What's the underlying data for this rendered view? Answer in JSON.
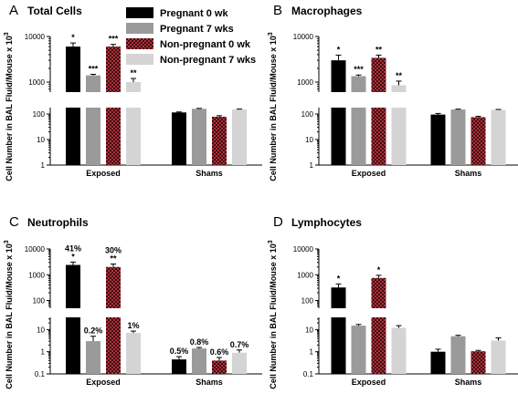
{
  "figure": {
    "legend": [
      {
        "name": "Pregnant 0 wk",
        "color": "#000000",
        "pattern": "solid"
      },
      {
        "name": "Pregnant 7 wks",
        "color": "#9a9a9a",
        "pattern": "solid"
      },
      {
        "name": "Non-pregnant 0 wk",
        "color": "#b0303a",
        "pattern": "checker"
      },
      {
        "name": "Non-pregnant 7 wks",
        "color": "#d4d4d4",
        "pattern": "solid"
      }
    ]
  },
  "chart_data": [
    {
      "type": "bar",
      "letter": "A",
      "title": "Total Cells",
      "ylabel": "Cell Number in BAL Fluid/Mouse x 10",
      "ylabel_sup": "3",
      "categories": [
        "Exposed",
        "Shams"
      ],
      "yscale": "log-broken",
      "upper_ticks": [
        "1000",
        "10000"
      ],
      "lower_ticks": [
        "1",
        "10",
        "100"
      ],
      "series": [
        {
          "name": "Pregnant 0 wk",
          "values": [
            6000,
            115
          ],
          "errors": [
            1200,
            5
          ]
        },
        {
          "name": "Pregnant 7 wks",
          "values": [
            1400,
            160
          ],
          "errors": [
            80,
            6
          ]
        },
        {
          "name": "Non-pregnant 0 wk",
          "values": [
            6000,
            78
          ],
          "errors": [
            700,
            8
          ]
        },
        {
          "name": "Non-pregnant 7 wks",
          "values": [
            1000,
            150
          ],
          "errors": [
            200,
            6
          ]
        }
      ],
      "annotations": [
        {
          "series": 0,
          "category": 0,
          "text": "*"
        },
        {
          "series": 1,
          "category": 0,
          "text": "***"
        },
        {
          "series": 2,
          "category": 0,
          "text": "***"
        },
        {
          "series": 3,
          "category": 0,
          "text": "**"
        }
      ]
    },
    {
      "type": "bar",
      "letter": "B",
      "title": "Macrophages",
      "ylabel": "Cell Number in BAL Fluid/Mouse x 10",
      "ylabel_sup": "3",
      "categories": [
        "Exposed",
        "Shams"
      ],
      "yscale": "log-broken",
      "upper_ticks": [
        "1000",
        "10000"
      ],
      "lower_ticks": [
        "1",
        "10",
        "100"
      ],
      "series": [
        {
          "name": "Pregnant 0 wk",
          "values": [
            3000,
            95
          ],
          "errors": [
            900,
            10
          ]
        },
        {
          "name": "Pregnant 7 wks",
          "values": [
            1350,
            150
          ],
          "errors": [
            80,
            5
          ]
        },
        {
          "name": "Non-pregnant 0 wk",
          "values": [
            3400,
            75
          ],
          "errors": [
            500,
            6
          ]
        },
        {
          "name": "Non-pregnant 7 wks",
          "values": [
            850,
            145
          ],
          "errors": [
            200,
            6
          ]
        }
      ],
      "annotations": [
        {
          "series": 0,
          "category": 0,
          "text": "*"
        },
        {
          "series": 1,
          "category": 0,
          "text": "***"
        },
        {
          "series": 2,
          "category": 0,
          "text": "**"
        },
        {
          "series": 3,
          "category": 0,
          "text": "**"
        }
      ]
    },
    {
      "type": "bar",
      "letter": "C",
      "title": "Neutrophils",
      "ylabel": "Cell Number in BAL Fluid/Mouse x 10",
      "ylabel_sup": "3",
      "categories": [
        "Exposed",
        "Shams"
      ],
      "yscale": "log-broken",
      "upper_ticks": [
        "100",
        "1000",
        "10000"
      ],
      "lower_ticks": [
        "0.1",
        "1",
        "10"
      ],
      "series": [
        {
          "name": "Pregnant 0 wk",
          "values": [
            2400,
            0.45
          ],
          "errors": [
            700,
            0.15
          ]
        },
        {
          "name": "Pregnant 7 wks",
          "values": [
            3,
            1.4
          ],
          "errors": [
            2,
            0.15
          ]
        },
        {
          "name": "Non-pregnant 0 wk",
          "values": [
            2000,
            0.4
          ],
          "errors": [
            600,
            0.15
          ]
        },
        {
          "name": "Non-pregnant 7 wks",
          "values": [
            7,
            0.9
          ],
          "errors": [
            1.5,
            0.3
          ]
        }
      ],
      "annotations": [
        {
          "series": 0,
          "category": 0,
          "text": "41%",
          "star": "*"
        },
        {
          "series": 1,
          "category": 0,
          "text": "0.2%"
        },
        {
          "series": 2,
          "category": 0,
          "text": "30%",
          "star": "**"
        },
        {
          "series": 3,
          "category": 0,
          "text": "1%"
        },
        {
          "series": 0,
          "category": 1,
          "text": "0.5%"
        },
        {
          "series": 1,
          "category": 1,
          "text": "0.8%"
        },
        {
          "series": 2,
          "category": 1,
          "text": "0.6%"
        },
        {
          "series": 3,
          "category": 1,
          "text": "0.7%"
        }
      ]
    },
    {
      "type": "bar",
      "letter": "D",
      "title": "Lymphocytes",
      "ylabel": "Cell Number in BAL Fluid/Mouse x 10",
      "ylabel_sup": "3",
      "categories": [
        "Exposed",
        "Shams"
      ],
      "yscale": "log-broken",
      "upper_ticks": [
        "100",
        "1000",
        "10000"
      ],
      "lower_ticks": [
        "0.1",
        "1",
        "10"
      ],
      "series": [
        {
          "name": "Pregnant 0 wk",
          "values": [
            320,
            1
          ],
          "errors": [
            120,
            0.3
          ]
        },
        {
          "name": "Pregnant 7 wks",
          "values": [
            15,
            5
          ],
          "errors": [
            2,
            0.5
          ]
        },
        {
          "name": "Non-pregnant 0 wk",
          "values": [
            750,
            1.05
          ],
          "errors": [
            200,
            0.1
          ]
        },
        {
          "name": "Non-pregnant 7 wks",
          "values": [
            12,
            3.2
          ],
          "errors": [
            3,
            1
          ]
        }
      ],
      "annotations": [
        {
          "series": 0,
          "category": 0,
          "text": "*"
        },
        {
          "series": 2,
          "category": 0,
          "text": "*"
        }
      ]
    }
  ]
}
